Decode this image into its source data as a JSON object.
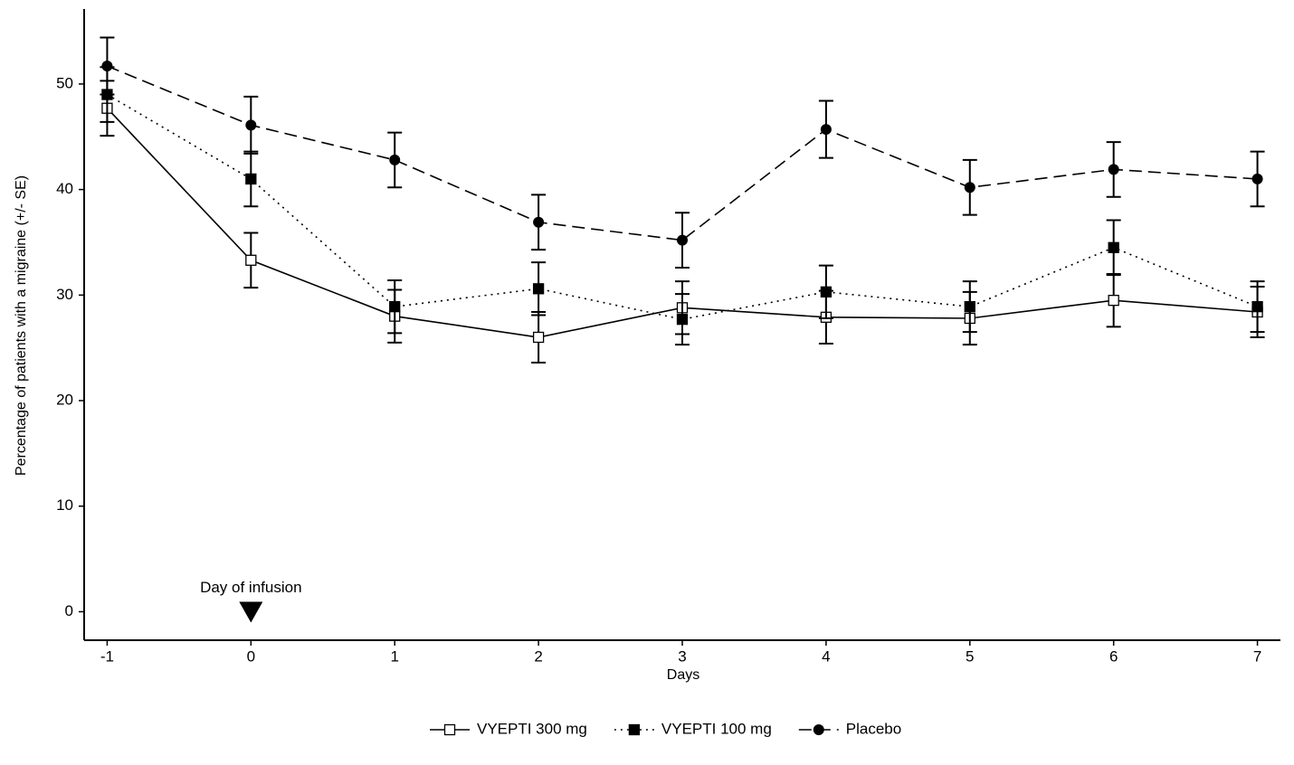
{
  "chart_data": {
    "type": "line",
    "x_label": "Days",
    "y_label": "Percentage of patients with a migraine (+/- SE)",
    "x": [
      -1,
      0,
      1,
      2,
      3,
      4,
      5,
      6,
      7
    ],
    "xlim": [
      -1.16,
      7.16
    ],
    "xticks": [
      -1,
      0,
      1,
      2,
      3,
      4,
      5,
      6,
      7
    ],
    "ylim": [
      -2.7,
      57.1
    ],
    "yticks": [
      0,
      10,
      20,
      30,
      40,
      50
    ],
    "legend": "bottom",
    "series": [
      {
        "name": "VYEPTI 300 mg",
        "color": "#000000",
        "linestyle": "solid",
        "marker": "open-square",
        "values": [
          47.7,
          33.3,
          28.0,
          26.0,
          28.8,
          27.9,
          27.8,
          29.5,
          28.4
        ],
        "errors": [
          2.6,
          2.6,
          2.5,
          2.4,
          2.5,
          2.5,
          2.5,
          2.5,
          2.4
        ]
      },
      {
        "name": "VYEPTI 100 mg",
        "color": "#000000",
        "linestyle": "dotted",
        "marker": "filled-square",
        "values": [
          49.0,
          41.0,
          28.9,
          30.6,
          27.7,
          30.3,
          28.9,
          34.5,
          28.9
        ],
        "errors": [
          2.6,
          2.6,
          2.5,
          2.5,
          2.4,
          2.5,
          2.4,
          2.6,
          2.4
        ]
      },
      {
        "name": "Placebo",
        "color": "#000000",
        "linestyle": "dashed",
        "marker": "circle",
        "values": [
          51.7,
          46.1,
          42.8,
          36.9,
          35.2,
          45.7,
          40.2,
          41.9,
          41.0
        ],
        "errors": [
          2.7,
          2.7,
          2.6,
          2.6,
          2.6,
          2.7,
          2.6,
          2.6,
          2.6
        ]
      }
    ],
    "annotations": [
      {
        "text": "Day of infusion",
        "x": 0
      }
    ]
  }
}
